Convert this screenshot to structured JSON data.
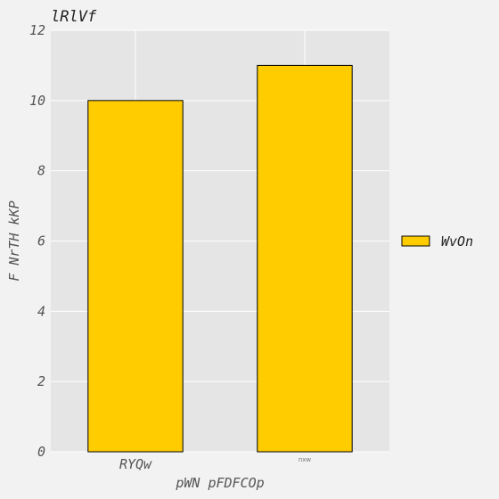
{
  "chart_data": {
    "type": "bar",
    "title": "lRlVf",
    "xlabel": "pWN pFDFCOp",
    "ylabel": "F NrTH kKP",
    "categories": [
      "RYQw",
      "nxw"
    ],
    "series": [
      {
        "name": "WvOn",
        "values": [
          10,
          11
        ],
        "color": "#ffcc00",
        "edgecolor": "#000000"
      }
    ],
    "ylim": [
      0,
      12
    ],
    "yticks": [
      0,
      2,
      4,
      6,
      8,
      10,
      12
    ],
    "grid": true,
    "legend_position": "right",
    "background_color": "#e5e5e5",
    "figure_color": "#f2f2f2",
    "grid_color": "#ffffff"
  }
}
